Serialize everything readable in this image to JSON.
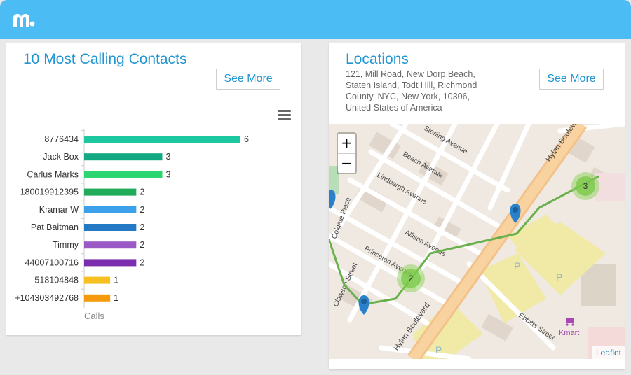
{
  "app": {
    "logo_icon": "mspy-logo-icon",
    "accent": "#4bbdf4"
  },
  "contacts_card": {
    "title": "10 Most Calling Contacts",
    "see_more": "See More",
    "menu_icon": "hamburger-menu-icon"
  },
  "chart_data": {
    "type": "bar",
    "orientation": "horizontal",
    "categories": [
      "8776434",
      "Jack Box",
      "Carlus Marks",
      "180019912395",
      "Kramar W",
      "Pat Baitman",
      "Timmy",
      "44007100716",
      "518104848",
      "+104303492768"
    ],
    "values": [
      6,
      3,
      3,
      2,
      2,
      2,
      2,
      2,
      1,
      1
    ],
    "colors": [
      "#1dc8a0",
      "#12a882",
      "#2bd56f",
      "#1fab57",
      "#3da0ea",
      "#2379c4",
      "#9b59c6",
      "#7b2fae",
      "#f5c020",
      "#f59a0c"
    ],
    "xlabel": "Calls",
    "xlim": [
      0,
      6
    ],
    "grid": false,
    "data_labels": true
  },
  "locations_card": {
    "title": "Locations",
    "address": "121, Mill Road, New Dorp Beach, Staten Island, Todt Hill, Richmond County, NYC, New York, 10306, United States of America",
    "see_more": "See More",
    "map": {
      "zoom_in": "+",
      "zoom_out": "−",
      "attribution": "Leaflet",
      "streets": [
        "Sterling Avenue",
        "Beach Avenue",
        "Lindbergh Avenue",
        "Colgate Place",
        "Princeton Avenue",
        "Allison Avenue",
        "Clawson Street",
        "Hylan Boulevard",
        "Ebbitts Street"
      ],
      "cluster_counts": [
        "3",
        "2"
      ],
      "store_label": "Kmart",
      "parking_label": "P",
      "route_color": "#6ab04c",
      "marker_color": "#2a81cb"
    }
  }
}
